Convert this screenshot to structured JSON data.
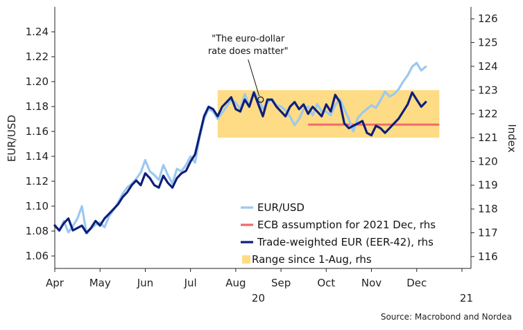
{
  "chart_data": {
    "type": "line",
    "ylabel_left": "EUR/USD",
    "ylabel_right": "Index",
    "yleft_range": [
      1.05,
      1.26
    ],
    "yright_range": [
      115.5,
      126.5
    ],
    "yleft_ticks": [
      "1.06",
      "1.08",
      "1.10",
      "1.12",
      "1.14",
      "1.16",
      "1.18",
      "1.20",
      "1.22",
      "1.24"
    ],
    "yright_ticks": [
      "116",
      "117",
      "118",
      "119",
      "120",
      "121",
      "122",
      "123",
      "124",
      "125",
      "126"
    ],
    "x_range": [
      0,
      9.2
    ],
    "month_labels": [
      {
        "label": "Apr",
        "x": 0
      },
      {
        "label": "May",
        "x": 1
      },
      {
        "label": "Jun",
        "x": 2
      },
      {
        "label": "Jul",
        "x": 3
      },
      {
        "label": "Aug",
        "x": 4
      },
      {
        "label": "Sep",
        "x": 5
      },
      {
        "label": "Oct",
        "x": 6
      },
      {
        "label": "Nov",
        "x": 7
      },
      {
        "label": "Dec",
        "x": 8
      }
    ],
    "year_labels": [
      {
        "label": "20",
        "x": 4.5
      },
      {
        "label": "21",
        "x": 9.1
      }
    ],
    "range_band": {
      "x_start": 3.6,
      "x_end": 8.5,
      "y_low": 121.0,
      "y_high": 123.0
    },
    "ecb_line": {
      "x_start": 5.6,
      "x_end": 8.5,
      "value": 121.55
    },
    "annotation": {
      "lines": [
        "\"The euro-dollar",
        "rate does matter\""
      ],
      "point": {
        "x": 4.55,
        "y": 122.6
      }
    },
    "legend_position": "bottom-right",
    "legend": [
      {
        "label": "EUR/USD",
        "kind": "line",
        "color": "#9cc8ee"
      },
      {
        "label": "ECB assumption for 2021 Dec, rhs",
        "kind": "line",
        "color": "#f06a6a"
      },
      {
        "label": "Trade-weighted EUR (EER-42), rhs",
        "kind": "line",
        "color": "#0d1f7a"
      },
      {
        "label": "Range since 1-Aug, rhs",
        "kind": "box",
        "color": "#fedb85"
      }
    ],
    "series": [
      {
        "name": "EUR/USD",
        "axis": "left",
        "color": "#9cc8ee",
        "x": [
          0,
          0.1,
          0.2,
          0.3,
          0.4,
          0.5,
          0.6,
          0.7,
          0.8,
          0.9,
          1.0,
          1.1,
          1.2,
          1.3,
          1.4,
          1.5,
          1.6,
          1.7,
          1.8,
          1.9,
          2.0,
          2.1,
          2.2,
          2.3,
          2.4,
          2.5,
          2.6,
          2.7,
          2.8,
          2.9,
          3.0,
          3.1,
          3.2,
          3.3,
          3.4,
          3.5,
          3.6,
          3.7,
          3.8,
          3.9,
          4.0,
          4.1,
          4.2,
          4.3,
          4.4,
          4.5,
          4.6,
          4.7,
          4.8,
          4.9,
          5.0,
          5.1,
          5.2,
          5.3,
          5.4,
          5.5,
          5.6,
          5.7,
          5.8,
          5.9,
          6.0,
          6.1,
          6.2,
          6.3,
          6.4,
          6.5,
          6.6,
          6.7,
          6.8,
          6.9,
          7.0,
          7.1,
          7.2,
          7.3,
          7.4,
          7.5,
          7.6,
          7.7,
          7.8,
          7.9,
          8.0,
          8.1,
          8.2
        ],
        "values": [
          1.085,
          1.08,
          1.088,
          1.079,
          1.084,
          1.09,
          1.1,
          1.078,
          1.082,
          1.085,
          1.087,
          1.083,
          1.092,
          1.097,
          1.103,
          1.11,
          1.115,
          1.118,
          1.122,
          1.127,
          1.137,
          1.128,
          1.125,
          1.121,
          1.133,
          1.125,
          1.118,
          1.13,
          1.128,
          1.133,
          1.14,
          1.135,
          1.155,
          1.17,
          1.178,
          1.176,
          1.17,
          1.175,
          1.18,
          1.186,
          1.183,
          1.178,
          1.19,
          1.18,
          1.192,
          1.186,
          1.178,
          1.183,
          1.186,
          1.181,
          1.18,
          1.177,
          1.172,
          1.165,
          1.17,
          1.178,
          1.18,
          1.173,
          1.182,
          1.176,
          1.176,
          1.173,
          1.181,
          1.186,
          1.178,
          1.17,
          1.16,
          1.171,
          1.175,
          1.178,
          1.181,
          1.179,
          1.185,
          1.192,
          1.188,
          1.19,
          1.194,
          1.2,
          1.205,
          1.212,
          1.215,
          1.209,
          1.212
        ]
      },
      {
        "name": "Trade-weighted EUR (EER-42), rhs",
        "axis": "right",
        "color": "#0d1f7a",
        "x": [
          0,
          0.1,
          0.2,
          0.3,
          0.4,
          0.5,
          0.6,
          0.7,
          0.8,
          0.9,
          1.0,
          1.1,
          1.2,
          1.3,
          1.4,
          1.5,
          1.6,
          1.7,
          1.8,
          1.9,
          2.0,
          2.1,
          2.2,
          2.3,
          2.4,
          2.5,
          2.6,
          2.7,
          2.8,
          2.9,
          3.0,
          3.1,
          3.2,
          3.3,
          3.4,
          3.5,
          3.6,
          3.7,
          3.8,
          3.9,
          4.0,
          4.1,
          4.2,
          4.3,
          4.4,
          4.5,
          4.6,
          4.7,
          4.8,
          4.9,
          5.0,
          5.1,
          5.2,
          5.3,
          5.4,
          5.5,
          5.6,
          5.7,
          5.8,
          5.9,
          6.0,
          6.1,
          6.2,
          6.3,
          6.4,
          6.5,
          6.6,
          6.7,
          6.8,
          6.9,
          7.0,
          7.1,
          7.2,
          7.3,
          7.4,
          7.5,
          7.6,
          7.7,
          7.8,
          7.9,
          8.0,
          8.1,
          8.2
        ],
        "values": [
          117.3,
          117.1,
          117.4,
          117.6,
          117.1,
          117.2,
          117.3,
          117.0,
          117.2,
          117.5,
          117.3,
          117.6,
          117.8,
          118.0,
          118.2,
          118.5,
          118.7,
          119.0,
          119.2,
          119.0,
          119.5,
          119.3,
          119.0,
          118.9,
          119.4,
          119.1,
          118.9,
          119.3,
          119.5,
          119.6,
          120.0,
          120.3,
          121.1,
          121.9,
          122.3,
          122.2,
          121.9,
          122.3,
          122.5,
          122.7,
          122.2,
          122.1,
          122.6,
          122.3,
          122.9,
          122.4,
          121.9,
          122.6,
          122.6,
          122.3,
          122.1,
          121.9,
          122.3,
          122.5,
          122.2,
          122.4,
          122.0,
          122.3,
          122.1,
          121.9,
          122.4,
          122.1,
          122.8,
          122.5,
          121.6,
          121.4,
          121.5,
          121.6,
          121.7,
          121.2,
          121.1,
          121.5,
          121.4,
          121.2,
          121.4,
          121.6,
          121.8,
          122.1,
          122.4,
          122.9,
          122.6,
          122.3,
          122.5
        ]
      }
    ],
    "source": "Source: Macrobond and Nordea"
  }
}
